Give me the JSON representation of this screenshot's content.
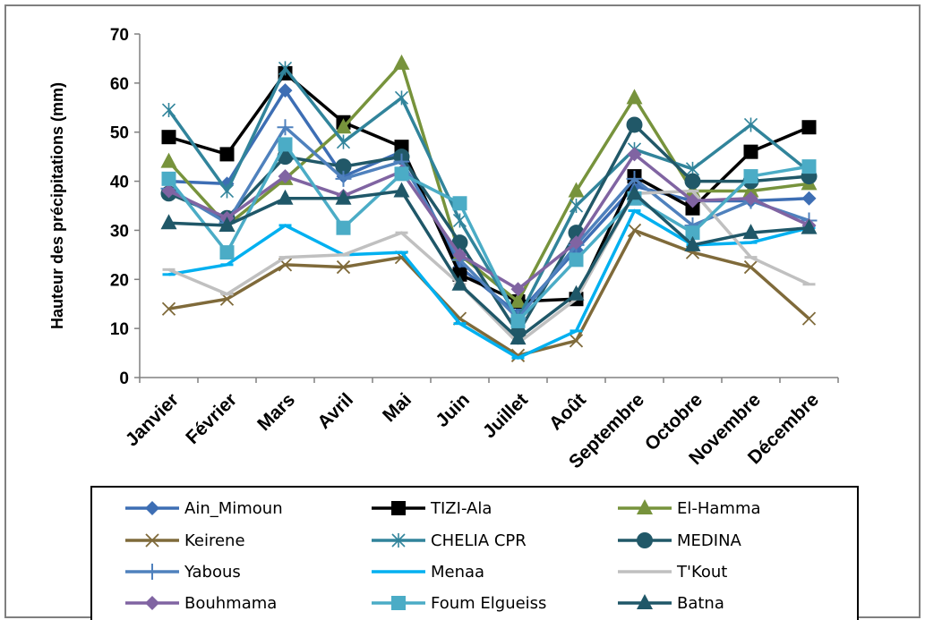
{
  "chart_data": {
    "type": "line",
    "ylabel": "Hauteur des précipitations (mm)",
    "xlabel": "",
    "ylim": [
      0,
      70
    ],
    "yticks": [
      0,
      10,
      20,
      30,
      40,
      50,
      60,
      70
    ],
    "grid": false,
    "legend_position": "bottom",
    "categories": [
      "Janvier",
      "Février",
      "Mars",
      "Avril",
      "Mai",
      "Juin",
      "Juillet",
      "Août",
      "Septembre",
      "Octobre",
      "Novembre",
      "Décembre"
    ],
    "series": [
      {
        "name": "Ain_Mimoun",
        "color": "#3d6eb4",
        "marker": "diamond",
        "values": [
          40,
          39.5,
          58.5,
          41,
          46,
          22.5,
          13,
          26,
          39,
          36,
          36,
          36.5
        ]
      },
      {
        "name": "TIZI-Ala",
        "color": "#000000",
        "marker": "square",
        "values": [
          49,
          45.5,
          62,
          52,
          47,
          21,
          15.5,
          16,
          41,
          34.5,
          46,
          51
        ]
      },
      {
        "name": "El-Hamma",
        "color": "#77933c",
        "marker": "triangle",
        "values": [
          44,
          31,
          40.5,
          51,
          64,
          25,
          15.5,
          38,
          57,
          38,
          38,
          39.5
        ]
      },
      {
        "name": "Keirene",
        "color": "#7f6a3a",
        "marker": "x",
        "values": [
          14,
          16,
          23,
          22.5,
          24.5,
          12,
          4.5,
          7.5,
          30,
          25.5,
          22.5,
          12
        ]
      },
      {
        "name": "CHELIA CPR",
        "color": "#31849b",
        "marker": "star",
        "values": [
          54.5,
          38,
          63,
          48,
          57,
          32,
          12,
          35,
          46.5,
          42.5,
          51.5,
          42
        ]
      },
      {
        "name": "MEDINA",
        "color": "#215868",
        "marker": "circle",
        "values": [
          37.5,
          32.5,
          45,
          43,
          45,
          27.5,
          9,
          29.5,
          51.5,
          40,
          40,
          41
        ]
      },
      {
        "name": "Yabous",
        "color": "#4f81bd",
        "marker": "plus",
        "values": [
          38.5,
          31.5,
          51,
          40.5,
          44,
          24,
          12,
          27,
          40.5,
          31,
          36,
          32
        ]
      },
      {
        "name": "Menaa",
        "color": "#00b0f0",
        "marker": "dash",
        "values": [
          21,
          23,
          31,
          25,
          25.5,
          11,
          4,
          9.5,
          34,
          27,
          27.5,
          30.5
        ]
      },
      {
        "name": "T'Kout",
        "color": "#c0c0c0",
        "marker": "dash",
        "values": [
          22,
          17,
          24.5,
          25,
          29.5,
          19,
          7,
          16,
          37.5,
          38,
          24.5,
          19
        ]
      },
      {
        "name": "Bouhmama",
        "color": "#8064a2",
        "marker": "diamond",
        "values": [
          38,
          32.5,
          41,
          37,
          42,
          25,
          18,
          27.5,
          45.5,
          36,
          36.5,
          31
        ]
      },
      {
        "name": "Foum Elgueiss",
        "color": "#4bacc6",
        "marker": "square",
        "values": [
          40.5,
          25.5,
          47.5,
          30.5,
          41.5,
          35.5,
          11.5,
          24,
          36.5,
          29.5,
          41,
          43
        ]
      },
      {
        "name": "Batna",
        "color": "#1f5768",
        "marker": "triangle",
        "values": [
          31.5,
          31,
          36.5,
          36.5,
          38,
          19,
          8,
          17,
          37.5,
          27,
          29.5,
          30.5
        ]
      }
    ]
  }
}
